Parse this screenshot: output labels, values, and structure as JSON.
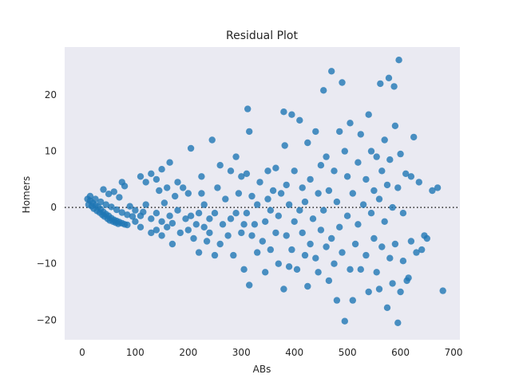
{
  "chart_data": {
    "type": "scatter",
    "title": "Residual Plot",
    "xlabel": "ABs",
    "ylabel": "Homers",
    "xlim": [
      -33,
      712
    ],
    "ylim": [
      -23.5,
      28.5
    ],
    "xticks": [
      0,
      100,
      200,
      300,
      400,
      500,
      600,
      700
    ],
    "yticks": [
      -20,
      -10,
      0,
      10,
      20
    ],
    "grid": false,
    "background": "#eaeaf2",
    "point_color": "#1f77b4",
    "reference_line": {
      "y": 0,
      "style": "dotted",
      "color": "#262626"
    },
    "series": [
      {
        "points": [
          [
            10,
            1.5
          ],
          [
            15,
            1.2
          ],
          [
            20,
            0.8
          ],
          [
            25,
            0.4
          ],
          [
            30,
            0.1
          ],
          [
            35,
            -0.3
          ],
          [
            40,
            -0.8
          ],
          [
            45,
            -1.2
          ],
          [
            50,
            -1.5
          ],
          [
            55,
            -1.9
          ],
          [
            60,
            -2.2
          ],
          [
            65,
            -2.4
          ],
          [
            70,
            -2.6
          ],
          [
            75,
            -2.8
          ],
          [
            80,
            -3.0
          ],
          [
            85,
            -3.1
          ],
          [
            12,
            0.5
          ],
          [
            18,
            0.2
          ],
          [
            22,
            -0.2
          ],
          [
            28,
            -0.6
          ],
          [
            33,
            -0.9
          ],
          [
            38,
            -1.3
          ],
          [
            42,
            -1.6
          ],
          [
            48,
            -2.0
          ],
          [
            52,
            -2.3
          ],
          [
            58,
            -2.5
          ],
          [
            63,
            -2.7
          ],
          [
            68,
            -2.9
          ],
          [
            15,
            2.0
          ],
          [
            25,
            1.5
          ],
          [
            35,
            1.0
          ],
          [
            45,
            0.5
          ],
          [
            55,
            0.1
          ],
          [
            65,
            -0.4
          ],
          [
            75,
            -0.9
          ],
          [
            85,
            -1.3
          ],
          [
            95,
            -1.6
          ],
          [
            40,
            3.2
          ],
          [
            50,
            2.4
          ],
          [
            60,
            2.8
          ],
          [
            70,
            1.8
          ],
          [
            80,
            3.8
          ],
          [
            75,
            4.5
          ],
          [
            90,
            0.2
          ],
          [
            100,
            -0.5
          ],
          [
            100,
            -2.5
          ],
          [
            110,
            -1.5
          ],
          [
            110,
            -3.5
          ],
          [
            115,
            -0.8
          ],
          [
            120,
            0.5
          ],
          [
            130,
            -2.0
          ],
          [
            130,
            -4.5
          ],
          [
            140,
            -1.0
          ],
          [
            140,
            -4.0
          ],
          [
            150,
            -2.5
          ],
          [
            150,
            -5.0
          ],
          [
            155,
            0.8
          ],
          [
            160,
            -3.5
          ],
          [
            165,
            -1.5
          ],
          [
            170,
            -2.8
          ],
          [
            180,
            -0.5
          ],
          [
            185,
            -4.5
          ],
          [
            110,
            5.5
          ],
          [
            120,
            4.5
          ],
          [
            130,
            6.0
          ],
          [
            140,
            5.0
          ],
          [
            145,
            3.0
          ],
          [
            150,
            6.8
          ],
          [
            165,
            8.0
          ],
          [
            160,
            3.5
          ],
          [
            175,
            2.0
          ],
          [
            180,
            4.5
          ],
          [
            190,
            3.5
          ],
          [
            200,
            2.5
          ],
          [
            170,
            -6.5
          ],
          [
            195,
            -2.0
          ],
          [
            200,
            -4.0
          ],
          [
            205,
            -1.5
          ],
          [
            205,
            10.5
          ],
          [
            210,
            -5.5
          ],
          [
            215,
            -3.0
          ],
          [
            220,
            -1.0
          ],
          [
            225,
            2.5
          ],
          [
            230,
            -3.5
          ],
          [
            235,
            -6.0
          ],
          [
            220,
            -8.0
          ],
          [
            225,
            5.5
          ],
          [
            230,
            0.5
          ],
          [
            240,
            -2.0
          ],
          [
            240,
            -4.5
          ],
          [
            245,
            12.0
          ],
          [
            250,
            -1.0
          ],
          [
            255,
            3.5
          ],
          [
            260,
            -6.5
          ],
          [
            260,
            7.5
          ],
          [
            265,
            -3.0
          ],
          [
            270,
            1.5
          ],
          [
            250,
            -8.5
          ],
          [
            275,
            -5.0
          ],
          [
            280,
            -2.0
          ],
          [
            280,
            6.5
          ],
          [
            285,
            -8.5
          ],
          [
            290,
            -1.0
          ],
          [
            290,
            9.0
          ],
          [
            295,
            2.5
          ],
          [
            300,
            -4.5
          ],
          [
            300,
            5.5
          ],
          [
            305,
            -11.0
          ],
          [
            305,
            -3.0
          ],
          [
            310,
            -1.0
          ],
          [
            310,
            6.0
          ],
          [
            312,
            17.5
          ],
          [
            315,
            -13.8
          ],
          [
            315,
            13.5
          ],
          [
            320,
            -5.0
          ],
          [
            320,
            2.0
          ],
          [
            325,
            -3.0
          ],
          [
            330,
            -8.0
          ],
          [
            330,
            0.5
          ],
          [
            335,
            4.5
          ],
          [
            340,
            -6.0
          ],
          [
            345,
            -11.5
          ],
          [
            345,
            -2.5
          ],
          [
            350,
            1.5
          ],
          [
            350,
            6.5
          ],
          [
            355,
            -7.5
          ],
          [
            355,
            -0.5
          ],
          [
            360,
            3.0
          ],
          [
            365,
            -4.5
          ],
          [
            365,
            7.0
          ],
          [
            370,
            -10.0
          ],
          [
            370,
            -1.5
          ],
          [
            375,
            2.5
          ],
          [
            380,
            -14.5
          ],
          [
            380,
            17.0
          ],
          [
            382,
            11.0
          ],
          [
            385,
            -5.0
          ],
          [
            385,
            4.0
          ],
          [
            390,
            -10.5
          ],
          [
            390,
            0.5
          ],
          [
            395,
            16.5
          ],
          [
            395,
            -7.5
          ],
          [
            400,
            -2.5
          ],
          [
            400,
            6.5
          ],
          [
            405,
            -11.0
          ],
          [
            410,
            15.5
          ],
          [
            410,
            -0.5
          ],
          [
            415,
            3.5
          ],
          [
            415,
            -4.5
          ],
          [
            420,
            -8.5
          ],
          [
            420,
            1.0
          ],
          [
            425,
            11.5
          ],
          [
            425,
            -14.0
          ],
          [
            430,
            5.0
          ],
          [
            430,
            -6.5
          ],
          [
            435,
            -2.0
          ],
          [
            440,
            13.5
          ],
          [
            440,
            -9.0
          ],
          [
            445,
            2.5
          ],
          [
            445,
            -11.5
          ],
          [
            450,
            -4.0
          ],
          [
            450,
            7.5
          ],
          [
            455,
            20.8
          ],
          [
            455,
            -0.5
          ],
          [
            460,
            9.0
          ],
          [
            460,
            -7.0
          ],
          [
            465,
            -13.0
          ],
          [
            465,
            3.0
          ],
          [
            470,
            24.2
          ],
          [
            470,
            -5.5
          ],
          [
            475,
            6.5
          ],
          [
            475,
            -10.0
          ],
          [
            480,
            1.0
          ],
          [
            480,
            -16.5
          ],
          [
            485,
            13.5
          ],
          [
            485,
            -3.5
          ],
          [
            490,
            22.2
          ],
          [
            490,
            -8.0
          ],
          [
            495,
            10.0
          ],
          [
            495,
            -20.2
          ],
          [
            500,
            -1.5
          ],
          [
            500,
            5.5
          ],
          [
            505,
            -11.0
          ],
          [
            505,
            15.0
          ],
          [
            510,
            -16.5
          ],
          [
            510,
            2.5
          ],
          [
            515,
            -6.5
          ],
          [
            520,
            8.0
          ],
          [
            520,
            -3.0
          ],
          [
            525,
            -11.0
          ],
          [
            525,
            13.0
          ],
          [
            530,
            0.5
          ],
          [
            535,
            -8.5
          ],
          [
            535,
            5.0
          ],
          [
            540,
            -15.0
          ],
          [
            540,
            16.5
          ],
          [
            545,
            -1.0
          ],
          [
            545,
            10.0
          ],
          [
            550,
            -5.5
          ],
          [
            550,
            3.0
          ],
          [
            555,
            -11.5
          ],
          [
            555,
            9.0
          ],
          [
            560,
            -14.5
          ],
          [
            560,
            1.5
          ],
          [
            562,
            22.0
          ],
          [
            565,
            -7.0
          ],
          [
            565,
            6.5
          ],
          [
            570,
            -2.5
          ],
          [
            570,
            12.0
          ],
          [
            575,
            -17.8
          ],
          [
            575,
            4.0
          ],
          [
            578,
            23.0
          ],
          [
            580,
            -9.0
          ],
          [
            580,
            8.5
          ],
          [
            585,
            -13.5
          ],
          [
            585,
            0.0
          ],
          [
            588,
            21.5
          ],
          [
            590,
            14.5
          ],
          [
            590,
            -6.5
          ],
          [
            595,
            -20.5
          ],
          [
            595,
            3.5
          ],
          [
            597,
            26.2
          ],
          [
            600,
            -15.0
          ],
          [
            600,
            9.5
          ],
          [
            605,
            -9.5
          ],
          [
            605,
            -1.0
          ],
          [
            610,
            6.0
          ],
          [
            612,
            -13.0
          ],
          [
            615,
            -12.5
          ],
          [
            620,
            -6.0
          ],
          [
            620,
            5.5
          ],
          [
            625,
            12.5
          ],
          [
            630,
            -8.0
          ],
          [
            635,
            4.5
          ],
          [
            640,
            -7.5
          ],
          [
            645,
            -5.0
          ],
          [
            650,
            -5.5
          ],
          [
            660,
            3.0
          ],
          [
            670,
            3.5
          ],
          [
            680,
            -14.8
          ]
        ]
      }
    ]
  }
}
